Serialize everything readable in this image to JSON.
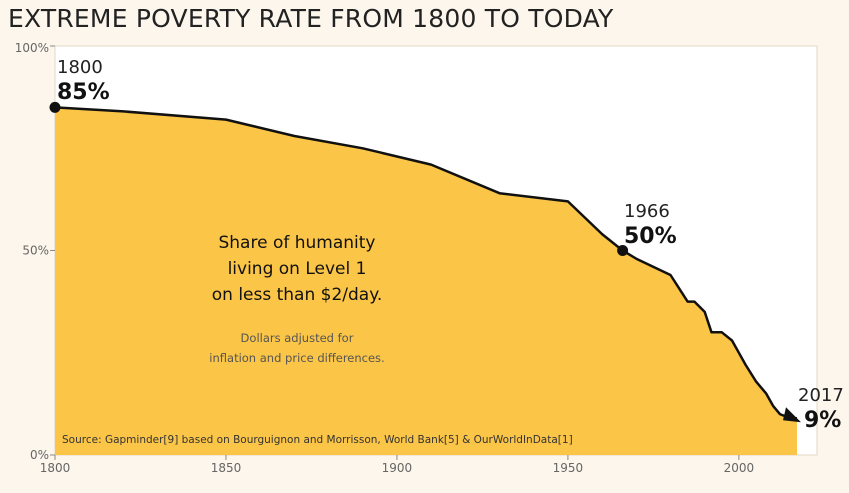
{
  "chart_data": {
    "type": "area",
    "title": "EXTREME POVERTY RATE FROM 1800 TO TODAY",
    "xlabel": "",
    "ylabel": "",
    "xlim": [
      1800,
      2017
    ],
    "ylim": [
      0,
      100
    ],
    "x_ticks": [
      1800,
      1850,
      1900,
      1950,
      2000
    ],
    "x_tick_labels": [
      "1800",
      "1850",
      "1900",
      "1950",
      "2000"
    ],
    "y_ticks": [
      0,
      50,
      100
    ],
    "y_tick_labels": [
      "0%",
      "50%",
      "100%"
    ],
    "series": [
      {
        "name": "Share of humanity living on Level 1",
        "x": [
          1800,
          1820,
          1850,
          1870,
          1890,
          1910,
          1930,
          1950,
          1960,
          1966,
          1970,
          1980,
          1985,
          1987,
          1990,
          1992,
          1995,
          1998,
          2000,
          2002,
          2005,
          2008,
          2010,
          2012,
          2015,
          2017
        ],
        "values": [
          85,
          84,
          82,
          78,
          75,
          71,
          64,
          62,
          54,
          50,
          48,
          44,
          37.5,
          37.5,
          35,
          30,
          30,
          28,
          25,
          22,
          18,
          15,
          12,
          10,
          9,
          9
        ]
      }
    ],
    "annotations": [
      {
        "year": "1800",
        "value": "85%",
        "x": 1800,
        "y": 85
      },
      {
        "year": "1966",
        "value": "50%",
        "x": 1966,
        "y": 50
      },
      {
        "year": "2017",
        "value": "9%",
        "x": 2017,
        "y": 9
      }
    ],
    "main_label": [
      "Share of humanity",
      "living on Level 1",
      "on less than $2/day."
    ],
    "sub_label": [
      "Dollars adjusted for",
      "inflation and price differences."
    ],
    "source": "Source: Gapminder[9] based on Bourguignon and Morrisson, World Bank[5] & OurWorldInData[1]",
    "colors": {
      "fill": "#fbc547",
      "line": "#111111",
      "background": "#fdf6ec"
    }
  }
}
